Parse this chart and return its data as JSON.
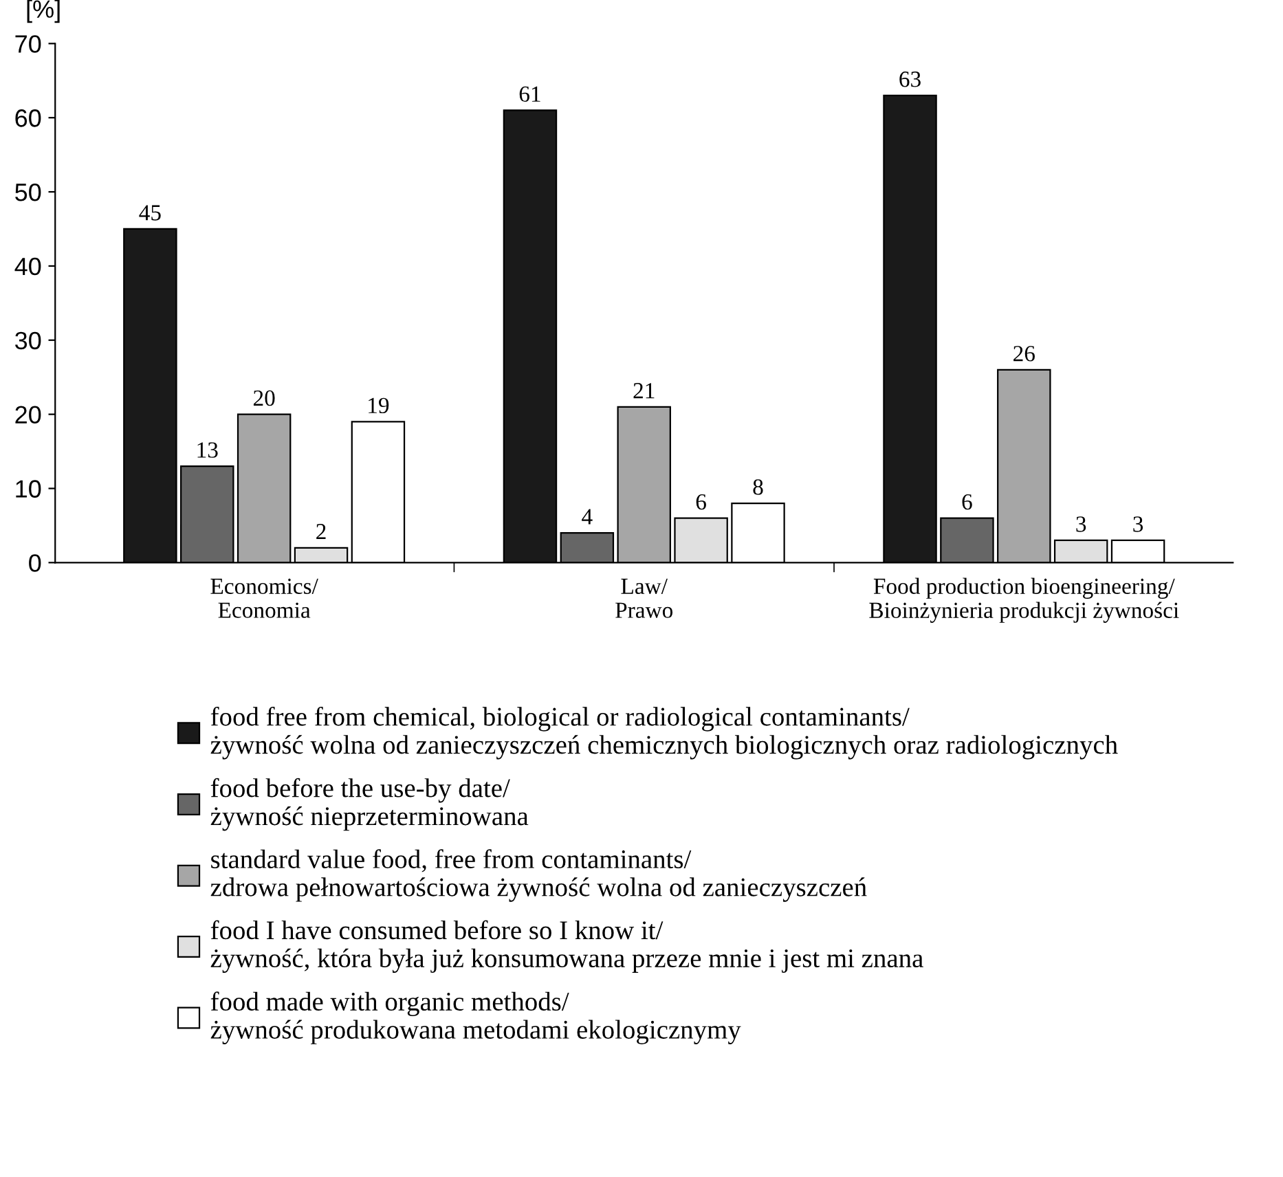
{
  "chart_data": {
    "type": "bar",
    "ylabel": "[%]",
    "categories": [
      "Economics/\nEconomia",
      "Law/\nPrawo",
      "Food production bioengineering/\nBioinżynieria produkcji żywności"
    ],
    "series": [
      {
        "name": "food free from chemical, biological or radiological contaminants/\nżywność wolna od zanieczyszczeń chemicznych biologicznych oraz radiologicznych",
        "color": "#1a1a1a",
        "values": [
          45,
          61,
          63
        ]
      },
      {
        "name": "food before the use-by date/\nżywność nieprzeterminowana",
        "color": "#666666",
        "values": [
          13,
          4,
          6
        ]
      },
      {
        "name": "standard value food, free from contaminants/\nzdrowa pełnowartościowa żywność wolna od zanieczyszczeń",
        "color": "#a6a6a6",
        "values": [
          20,
          21,
          26
        ]
      },
      {
        "name": "food I have consumed before so I know it/\nżywność, która była już konsumowana przeze mnie i jest mi znana",
        "color": "#e0e0e0",
        "values": [
          2,
          6,
          3
        ]
      },
      {
        "name": "food made with organic methods/\nżywność produkowana metodami ekologicznymy",
        "color": "#ffffff",
        "values": [
          19,
          8,
          3
        ]
      }
    ],
    "ylim": [
      0,
      70
    ],
    "yticks": [
      0,
      10,
      20,
      30,
      40,
      50,
      60,
      70
    ],
    "data_labels": true,
    "grid": false,
    "legend": "bottom"
  }
}
